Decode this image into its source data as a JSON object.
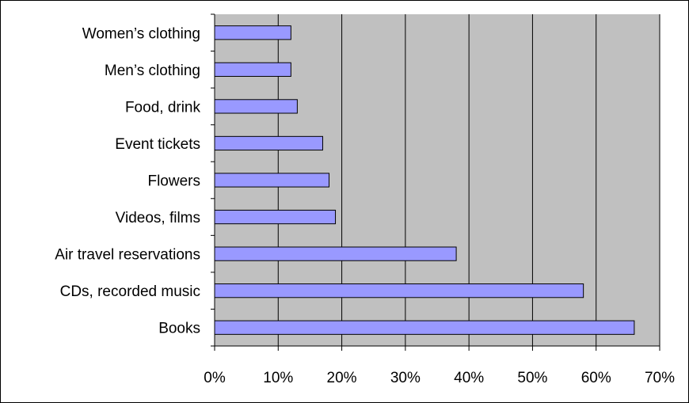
{
  "chart_data": {
    "type": "bar",
    "orientation": "horizontal",
    "categories": [
      "Women’s clothing",
      "Men’s clothing",
      "Food, drink",
      "Event tickets",
      "Flowers",
      "Videos, films",
      "Air travel reservations",
      "CDs, recorded music",
      "Books"
    ],
    "values": [
      12,
      12,
      13,
      17,
      18,
      19,
      38,
      58,
      66
    ],
    "title": "",
    "xlabel": "",
    "ylabel": "",
    "xlim": [
      0,
      70
    ],
    "xticks": [
      0,
      10,
      20,
      30,
      40,
      50,
      60,
      70
    ],
    "tick_labels": [
      "0%",
      "10%",
      "20%",
      "30%",
      "40%",
      "50%",
      "60%",
      "70%"
    ],
    "grid": "vertical major gridlines",
    "legend": "none",
    "colors": {
      "bar_fill": "#9999FF",
      "bar_stroke": "#000000",
      "plot_background": "#C0C0C0",
      "gridline": "#000000"
    }
  }
}
